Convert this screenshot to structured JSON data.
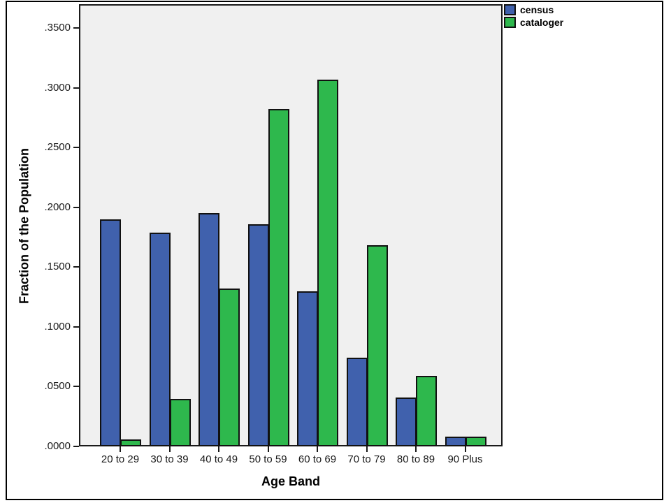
{
  "chart_data": {
    "type": "bar",
    "title": "",
    "categories": [
      "20 to 29",
      "30 to 39",
      "40 to 49",
      "50 to 59",
      "60 to 69",
      "70 to 79",
      "80 to 89",
      "90 Plus"
    ],
    "series": [
      {
        "name": "census",
        "color": "#4061ad",
        "values": [
          0.19,
          0.179,
          0.195,
          0.186,
          0.13,
          0.074,
          0.041,
          0.008
        ]
      },
      {
        "name": "cataloger",
        "color": "#2eb84d",
        "values": [
          0.006,
          0.04,
          0.132,
          0.282,
          0.307,
          0.168,
          0.059,
          0.008
        ]
      }
    ],
    "xlabel": "Age Band",
    "ylabel": "Fraction of the Population",
    "ylim": [
      0,
      0.35
    ],
    "ytick_step": 0.05,
    "ytick_labels": [
      ".0000",
      ".0500",
      ".1000",
      ".1500",
      ".2000",
      ".2500",
      ".3000",
      ".3500"
    ],
    "grid": false,
    "legend_position": "top-right",
    "plot_background": "#f0f0f0",
    "bar_border_color": "#111111"
  }
}
